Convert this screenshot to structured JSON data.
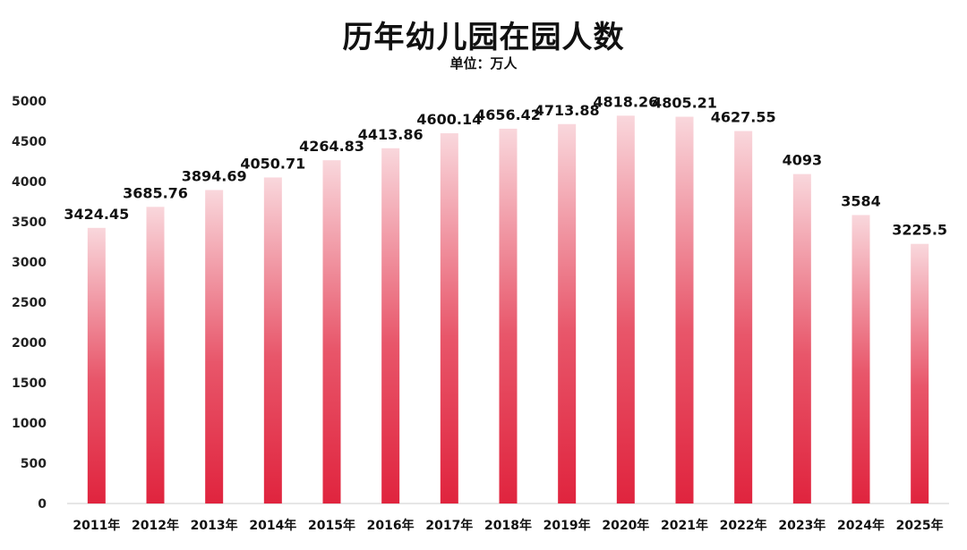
{
  "chart_data": {
    "type": "bar",
    "title": "历年幼儿园在园人数",
    "subtitle": "单位：万人",
    "categories": [
      "2011年",
      "2012年",
      "2013年",
      "2014年",
      "2015年",
      "2016年",
      "2017年",
      "2018年",
      "2019年",
      "2020年",
      "2021年",
      "2022年",
      "2023年",
      "2024年",
      "2025年"
    ],
    "values": [
      3424.45,
      3685.76,
      3894.69,
      4050.71,
      4264.83,
      4413.86,
      4600.14,
      4656.42,
      4713.88,
      4818.26,
      4805.21,
      4627.55,
      4093,
      3584,
      3225.5
    ],
    "value_labels": [
      "3424.45",
      "3685.76",
      "3894.69",
      "4050.71",
      "4264.83",
      "4413.86",
      "4600.14",
      "4656.42",
      "4713.88",
      "4818.26",
      "4805.21",
      "4627.55",
      "4093",
      "3584",
      "3225.5"
    ],
    "y_ticks": [
      0,
      500,
      1000,
      1500,
      2000,
      2500,
      3000,
      3500,
      4000,
      4500,
      5000
    ],
    "ylim": [
      0,
      5000
    ],
    "grid": false,
    "bar_color_top": "#f9d7dc",
    "bar_color_bottom": "#e0243e"
  }
}
